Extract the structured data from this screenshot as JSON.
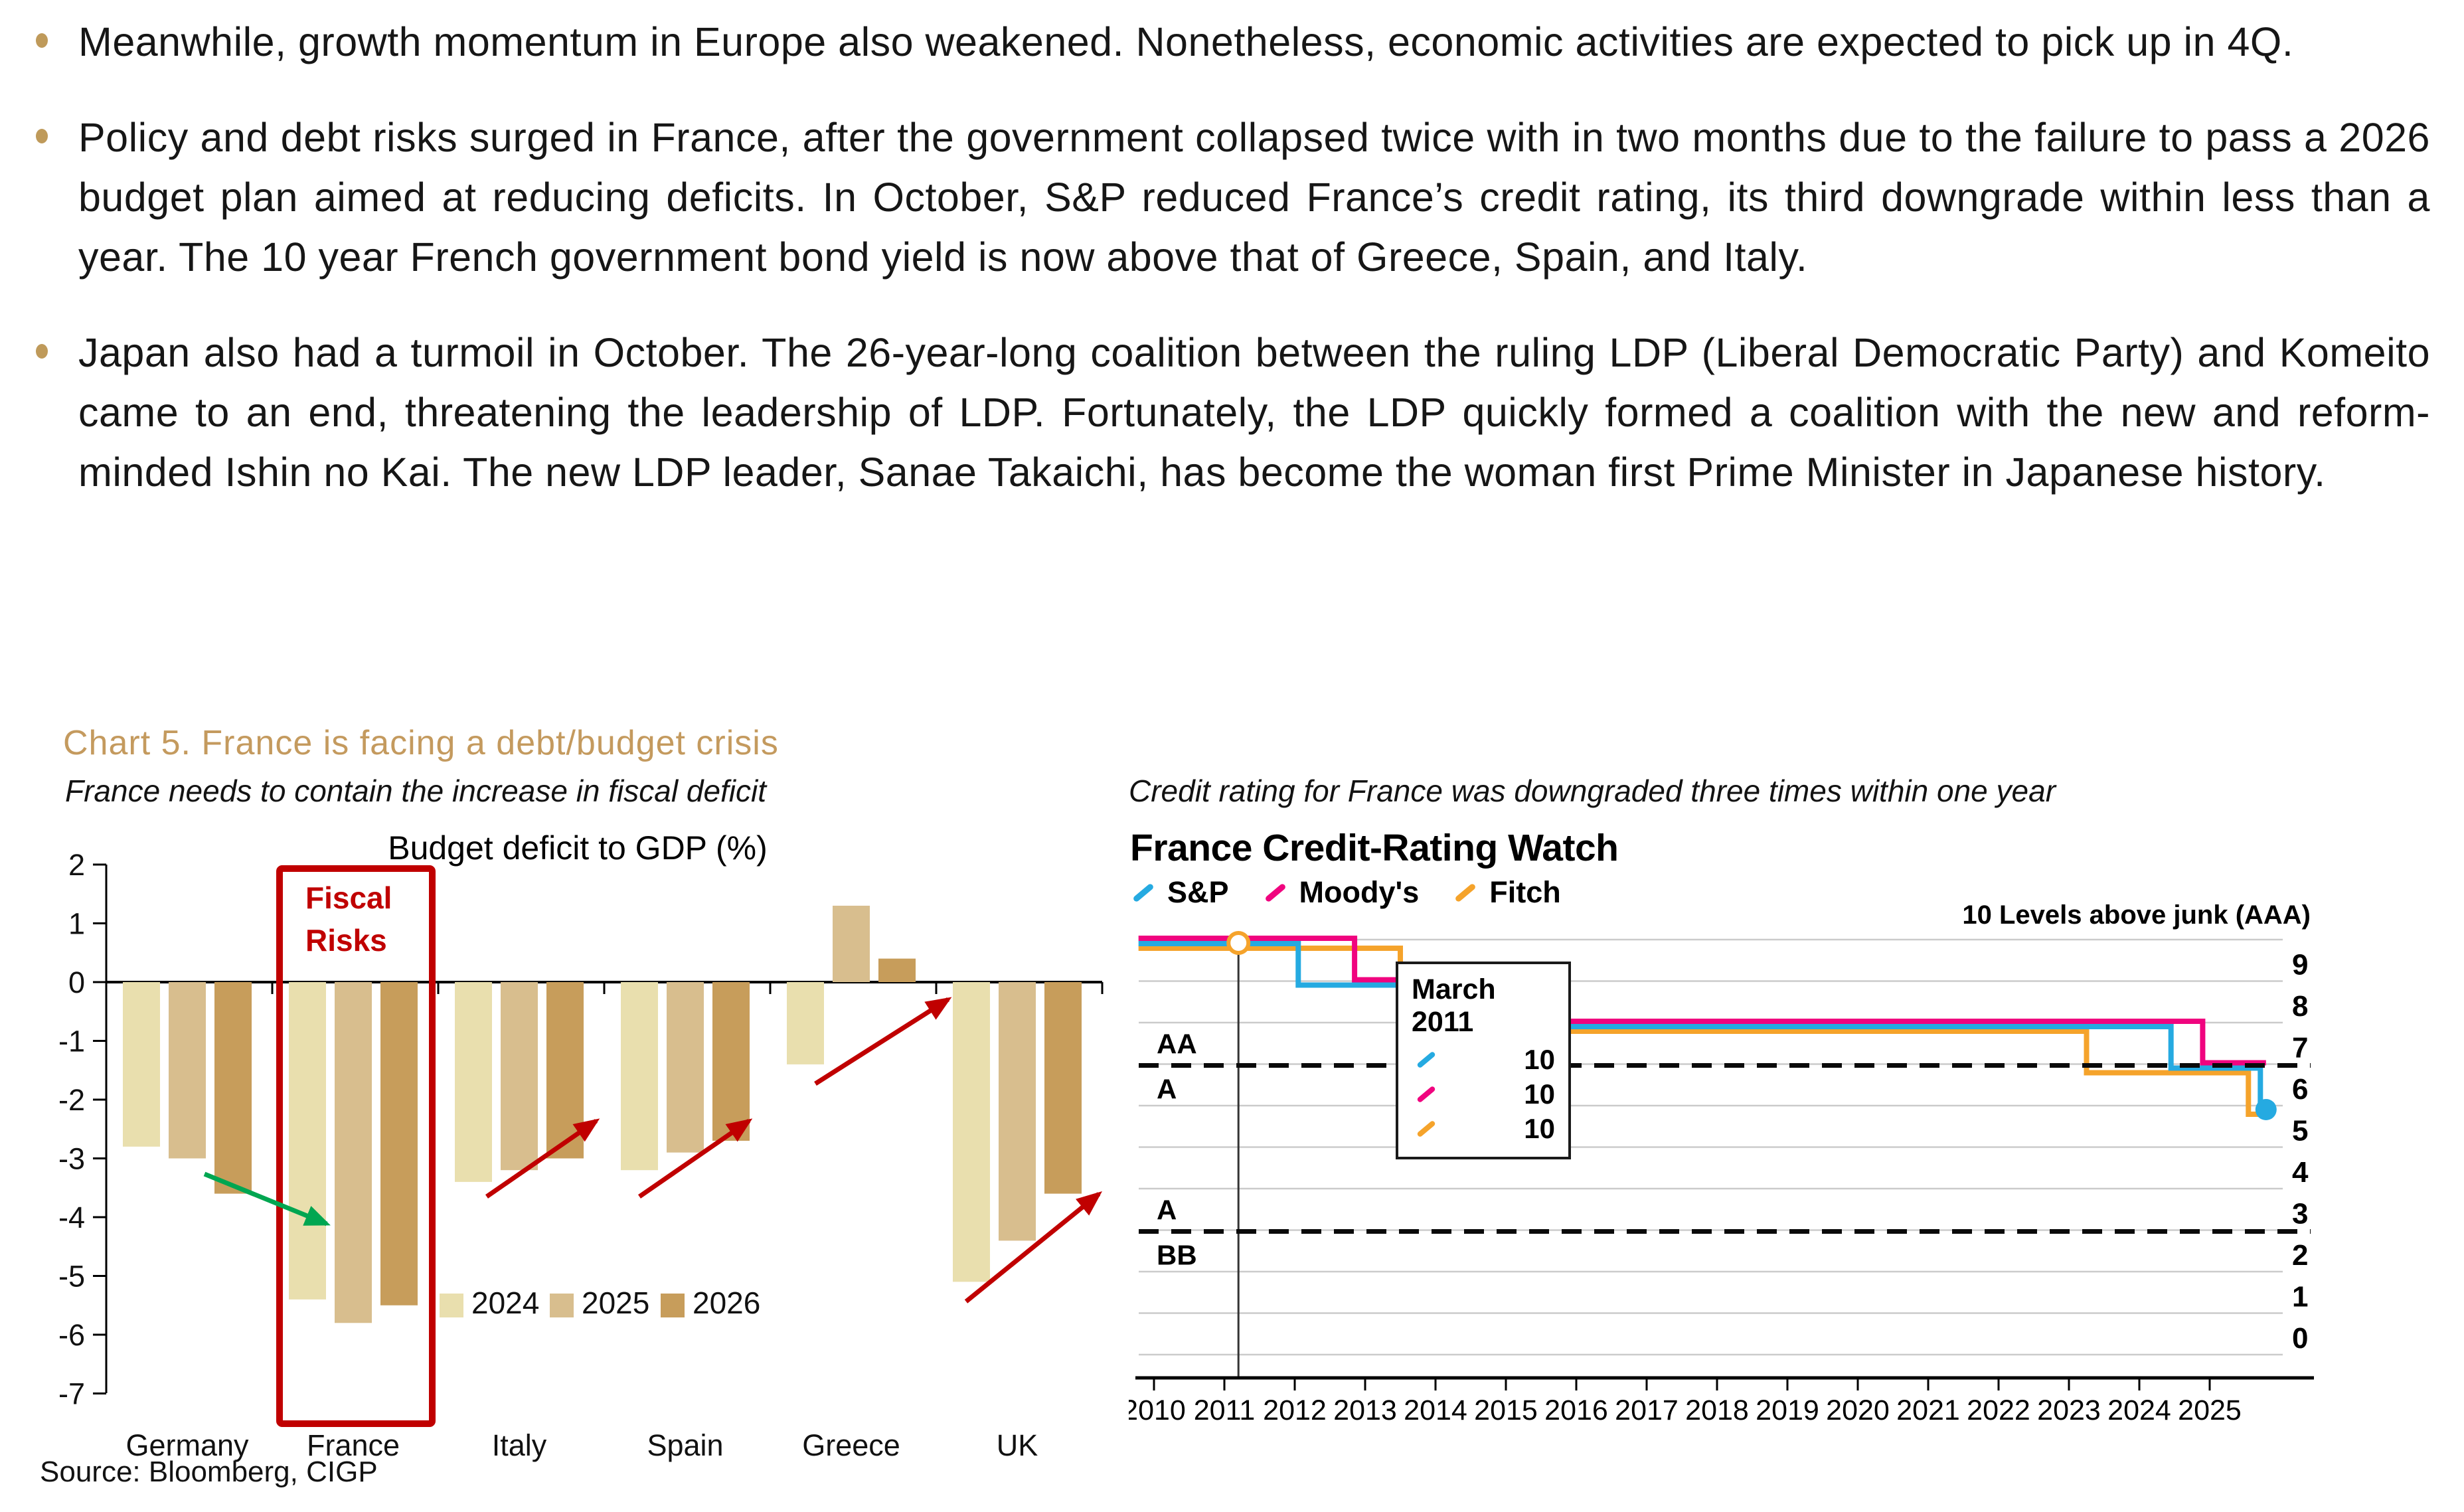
{
  "page": {
    "background": "#FFFFFF"
  },
  "bullets": [
    {
      "text": "Meanwhile, growth momentum in Europe also weakened. Nonetheless, economic activities are expected to pick up in 4Q."
    },
    {
      "text": "Policy and debt risks surged in France, after the government collapsed twice with in two months due to the failure to pass a 2026 budget plan aimed at reducing deficits. In October, S&P reduced France’s credit rating, its third downgrade within less than a year. The 10 year French government bond yield is now above that of Greece, Spain, and Italy."
    },
    {
      "text": "Japan also had a turmoil in October. The 26-year-long coalition between the ruling LDP (Liberal Democratic Party) and Komeito came to an end, threatening the leadership of LDP. Fortunately, the LDP quickly formed a coalition with the new and reform-minded Ishin no Kai. The new LDP leader, Sanae Takaichi, has become the woman first Prime Minister in Japanese history."
    }
  ],
  "heading": {
    "text": "Chart 5. France is facing a debt/budget crisis",
    "color": "#C49A5E"
  },
  "left_panel": {
    "subtitle": "France needs to contain the increase in fiscal deficit",
    "source": "Source: Bloomberg, CIGP"
  },
  "right_panel": {
    "subtitle": "Credit rating for France was downgraded three times within one year"
  },
  "chart_data": [
    {
      "type": "bar",
      "title": "Budget deficit to GDP (%)",
      "categories": [
        "Germany",
        "France",
        "Italy",
        "Spain",
        "Greece",
        "UK"
      ],
      "series": [
        {
          "name": "2024",
          "color": "#E9DFAE",
          "values": [
            -2.8,
            -5.4,
            -3.4,
            -3.2,
            -1.4,
            -5.1
          ]
        },
        {
          "name": "2025",
          "color": "#D8BE8E",
          "values": [
            -3.0,
            -5.8,
            -3.2,
            -2.9,
            1.3,
            -4.4
          ]
        },
        {
          "name": "2026",
          "color": "#C79D5B",
          "values": [
            -3.6,
            -5.5,
            -3.0,
            -2.7,
            0.4,
            -3.6
          ]
        }
      ],
      "ylim": [
        -7,
        2
      ],
      "yticks": [
        2,
        1,
        0,
        -1,
        -2,
        -3,
        -4,
        -5,
        -6,
        -7
      ],
      "grid": false,
      "legend_position": "inside-bottom",
      "callout": {
        "target": "France",
        "label_lines": [
          "Fiscal",
          "Risks"
        ],
        "color": "#C00000"
      },
      "annotations": [
        {
          "name": "germany-trend-arrow",
          "direction": "down",
          "color": "#00A651"
        },
        {
          "name": "italy-trend-arrow",
          "direction": "up",
          "color": "#C00000"
        },
        {
          "name": "spain-trend-arrow",
          "direction": "up",
          "color": "#C00000"
        },
        {
          "name": "greece-trend-arrow",
          "direction": "up",
          "color": "#C00000"
        },
        {
          "name": "uk-trend-arrow",
          "direction": "up",
          "color": "#C00000"
        }
      ]
    },
    {
      "type": "line",
      "title": "France Credit-Rating Watch",
      "annotation": "10 Levels above junk (AAA)",
      "ylim": [
        0,
        10
      ],
      "right_axis_labels": [
        "9",
        "8",
        "7",
        "6",
        "5",
        "4",
        "3",
        "2",
        "1",
        "0"
      ],
      "years": [
        2010,
        2011,
        2012,
        2013,
        2014,
        2015,
        2016,
        2017,
        2018,
        2019,
        2020,
        2021,
        2022,
        2023,
        2024,
        2025
      ],
      "series": [
        {
          "name": "S&P",
          "color": "#25AAE1",
          "endpoint_dot": true,
          "points": [
            [
              2009.78,
              10
            ],
            [
              2012.05,
              9
            ],
            [
              2013.9,
              8
            ],
            [
              2024.45,
              7
            ],
            [
              2025.72,
              6
            ],
            [
              2025.8,
              6
            ]
          ]
        },
        {
          "name": "Moody's",
          "color": "#F0047F",
          "points": [
            [
              2009.78,
              10
            ],
            [
              2012.85,
              9
            ],
            [
              2015.7,
              8
            ],
            [
              2024.9,
              7
            ],
            [
              2025.8,
              7
            ]
          ]
        },
        {
          "name": "Fitch",
          "color": "#F5A32B",
          "points": [
            [
              2009.78,
              10
            ],
            [
              2013.5,
              9
            ],
            [
              2014.95,
              8
            ],
            [
              2023.25,
              7
            ],
            [
              2025.55,
              6
            ],
            [
              2025.78,
              6
            ]
          ]
        }
      ],
      "dashed_boundaries": [
        {
          "level": 7,
          "label_above": "AA",
          "label_below": "A"
        },
        {
          "level": 3,
          "label_above": "A",
          "label_below": "BB"
        }
      ],
      "event_marker": {
        "x": 2011.2,
        "tooltip": {
          "title": "March 2011",
          "rows": [
            {
              "series": "S&P",
              "value": "10"
            },
            {
              "series": "Moody's",
              "value": "10"
            },
            {
              "series": "Fitch",
              "value": "10"
            }
          ]
        }
      }
    }
  ]
}
